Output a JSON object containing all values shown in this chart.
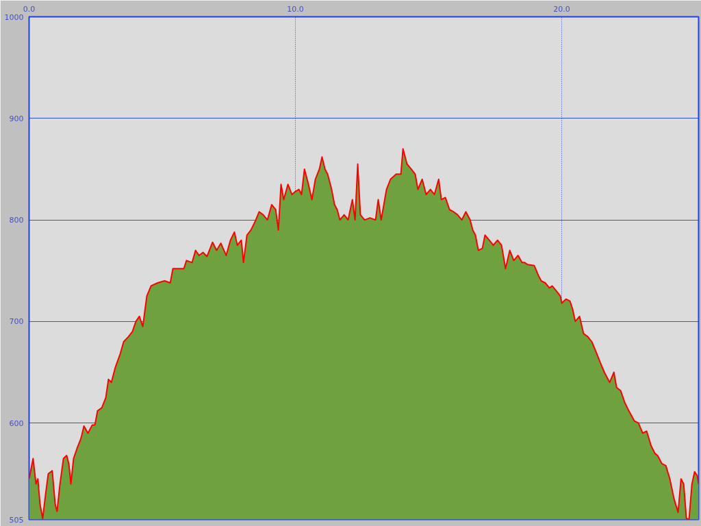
{
  "chart_data": {
    "type": "area",
    "x": [
      0,
      0.15,
      0.26,
      0.33,
      0.41,
      0.51,
      0.62,
      0.72,
      0.87,
      0.98,
      1.05,
      1.16,
      1.29,
      1.41,
      1.49,
      1.57,
      1.67,
      1.8,
      1.95,
      2.06,
      2.21,
      2.37,
      2.47,
      2.57,
      2.73,
      2.88,
      2.98,
      3.09,
      3.24,
      3.42,
      3.55,
      3.73,
      3.88,
      4.01,
      4.14,
      4.27,
      4.32,
      4.42,
      4.58,
      4.83,
      5.09,
      5.3,
      5.4,
      5.6,
      5.81,
      5.91,
      6.12,
      6.25,
      6.38,
      6.53,
      6.68,
      6.89,
      7.04,
      7.2,
      7.4,
      7.56,
      7.71,
      7.82,
      7.97,
      8.05,
      8.18,
      8.33,
      8.48,
      8.64,
      8.79,
      8.95,
      9.11,
      9.26,
      9.36,
      9.46,
      9.56,
      9.72,
      9.87,
      10.0,
      10.13,
      10.23,
      10.34,
      10.49,
      10.62,
      10.75,
      10.9,
      11.0,
      11.11,
      11.21,
      11.36,
      11.47,
      11.57,
      11.67,
      11.83,
      11.98,
      12.14,
      12.24,
      12.34,
      12.44,
      12.6,
      12.8,
      13.01,
      13.11,
      13.22,
      13.42,
      13.57,
      13.78,
      13.96,
      14.04,
      14.19,
      14.35,
      14.5,
      14.6,
      14.76,
      14.91,
      15.07,
      15.22,
      15.38,
      15.48,
      15.63,
      15.79,
      15.94,
      16.09,
      16.25,
      16.4,
      16.56,
      16.66,
      16.76,
      16.87,
      17.02,
      17.12,
      17.28,
      17.43,
      17.59,
      17.74,
      17.89,
      18.05,
      18.2,
      18.36,
      18.51,
      18.61,
      18.72,
      18.97,
      19.13,
      19.23,
      19.38,
      19.54,
      19.64,
      19.8,
      19.95,
      20.0,
      20.16,
      20.31,
      20.41,
      20.51,
      20.67,
      20.82,
      20.98,
      21.13,
      21.29,
      21.44,
      21.6,
      21.8,
      21.96,
      22.06,
      22.21,
      22.37,
      22.52,
      22.73,
      22.88,
      23.04,
      23.19,
      23.35,
      23.5,
      23.6,
      23.76,
      23.91,
      24.06,
      24.22,
      24.37,
      24.48,
      24.58,
      24.68,
      24.78,
      24.89,
      24.99,
      25.09,
      25.14
    ],
    "series": [
      {
        "color": "#6fa23e",
        "values": [
          545,
          565,
          540,
          545,
          520,
          506,
          530,
          550,
          553,
          520,
          513,
          540,
          565,
          568,
          560,
          540,
          565,
          575,
          585,
          597,
          590,
          598,
          598,
          612,
          615,
          625,
          643,
          640,
          655,
          668,
          680,
          685,
          690,
          700,
          705,
          695,
          705,
          725,
          735,
          738,
          740,
          738,
          752,
          752,
          752,
          760,
          758,
          770,
          765,
          768,
          764,
          778,
          770,
          777,
          765,
          780,
          788,
          775,
          780,
          758,
          785,
          790,
          798,
          808,
          805,
          800,
          815,
          810,
          790,
          835,
          820,
          835,
          825,
          828,
          830,
          825,
          850,
          835,
          820,
          840,
          850,
          862,
          850,
          845,
          830,
          815,
          810,
          800,
          805,
          800,
          820,
          800,
          855,
          805,
          800,
          802,
          800,
          820,
          800,
          830,
          840,
          845,
          845,
          870,
          855,
          850,
          845,
          830,
          840,
          825,
          830,
          825,
          840,
          820,
          822,
          810,
          808,
          805,
          800,
          808,
          800,
          790,
          785,
          770,
          772,
          785,
          780,
          775,
          780,
          775,
          752,
          770,
          760,
          765,
          758,
          758,
          756,
          755,
          745,
          740,
          738,
          733,
          735,
          730,
          725,
          718,
          722,
          720,
          712,
          700,
          705,
          688,
          685,
          680,
          670,
          660,
          650,
          640,
          650,
          635,
          632,
          620,
          612,
          602,
          600,
          590,
          592,
          578,
          570,
          568,
          560,
          558,
          545,
          525,
          512,
          545,
          540,
          506,
          505,
          540,
          552,
          548,
          540
        ]
      }
    ],
    "xlim": [
      0,
      25.14
    ],
    "ylim": [
      505,
      1000
    ],
    "xticks": [
      {
        "value": 0,
        "label": "0.0"
      },
      {
        "value": 10,
        "label": "10.0"
      },
      {
        "value": 20,
        "label": "20.0"
      }
    ],
    "yticks": [
      505,
      600,
      700,
      800,
      900,
      1000
    ],
    "grid": true
  }
}
